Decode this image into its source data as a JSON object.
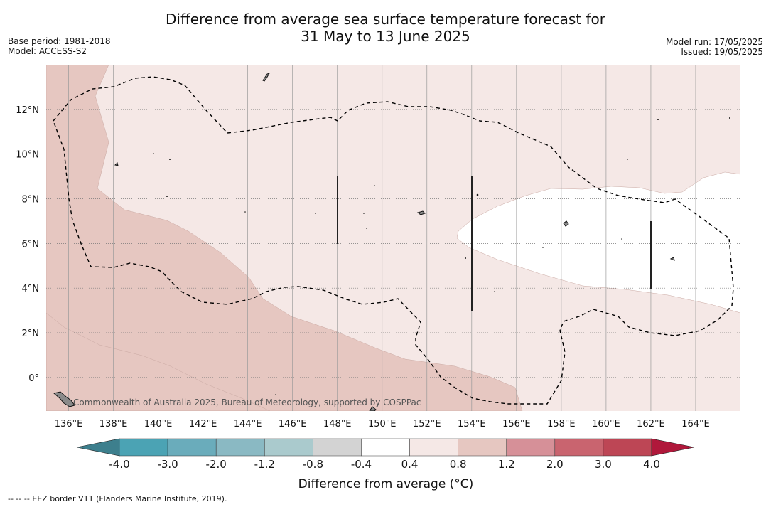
{
  "title": {
    "line1": "Difference from average sea surface temperature forecast for",
    "line2": "31 May to 13 June 2025"
  },
  "meta_left": {
    "base_period": "Base period: 1981-2018",
    "model": "Model: ACCESS-S2"
  },
  "meta_right": {
    "model_run": "Model run: 17/05/2025",
    "issued": "Issued: 19/05/2025"
  },
  "map": {
    "lon_min": 135,
    "lon_max": 166,
    "lat_min": -1.5,
    "lat_max": 14,
    "lat_ticks": [
      {
        "value": 12,
        "label": "12°N"
      },
      {
        "value": 10,
        "label": "10°N"
      },
      {
        "value": 8,
        "label": "8°N"
      },
      {
        "value": 6,
        "label": "6°N"
      },
      {
        "value": 4,
        "label": "4°N"
      },
      {
        "value": 2,
        "label": "2°N"
      },
      {
        "value": 0,
        "label": "0°"
      }
    ],
    "lon_ticks": [
      {
        "value": 136,
        "label": "136°E"
      },
      {
        "value": 138,
        "label": "138°E"
      },
      {
        "value": 140,
        "label": "140°E"
      },
      {
        "value": 142,
        "label": "142°E"
      },
      {
        "value": 144,
        "label": "144°E"
      },
      {
        "value": 146,
        "label": "146°E"
      },
      {
        "value": 148,
        "label": "148°E"
      },
      {
        "value": 150,
        "label": "150°E"
      },
      {
        "value": 152,
        "label": "152°E"
      },
      {
        "value": 154,
        "label": "154°E"
      },
      {
        "value": 156,
        "label": "156°E"
      },
      {
        "value": 158,
        "label": "158°E"
      },
      {
        "value": 160,
        "label": "160°E"
      },
      {
        "value": 162,
        "label": "162°E"
      },
      {
        "value": 164,
        "label": "164°E"
      }
    ],
    "copyright": "Commonwealth of Australia 2025, Bureau of Meteorology, supported by COSPPac",
    "colors": {
      "band_0_4_to_0_8": "#f5e8e6",
      "band_0_8_to_1_2": "#e6c7c1",
      "band_neg0_4_to_0_4": "#ffffff",
      "eez_line": "#000000",
      "land": "#8a8a8a"
    }
  },
  "colorbar": {
    "title": "Difference from average (°C)",
    "tick_labels": [
      "-4.0",
      "-3.0",
      "-2.0",
      "-1.2",
      "-0.8",
      "-0.4",
      "0.4",
      "0.8",
      "1.2",
      "2.0",
      "3.0",
      "4.0"
    ],
    "under_color": "#3d7f8d",
    "over_color": "#b0183b",
    "colors": [
      "#4ba3b4",
      "#6aacbb",
      "#8ab9c3",
      "#aacacd",
      "#d3d3d3",
      "#ffffff",
      "#f5e8e6",
      "#e6c7c1",
      "#d69098",
      "#c9646f",
      "#bd4655"
    ]
  },
  "footnote": "--  --  -- EEZ border V11 (Flanders Marine Institute, 2019)."
}
